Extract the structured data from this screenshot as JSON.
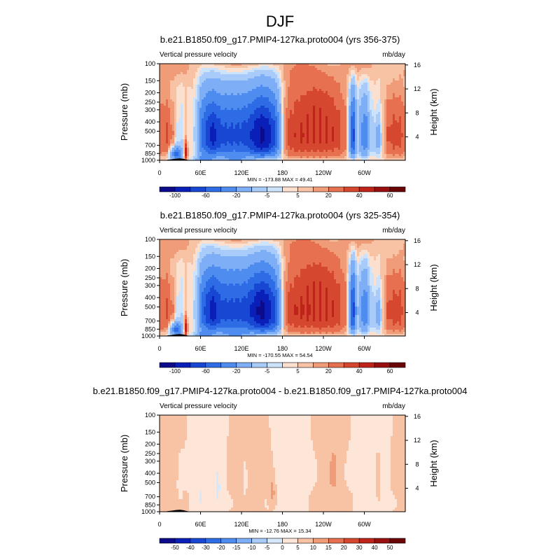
{
  "figure": {
    "title": "DJF"
  },
  "colors": {
    "abs_palette": [
      "#0b0b8c",
      "#0a1fb8",
      "#1747d3",
      "#2e6ce6",
      "#4f8cf0",
      "#7eaef6",
      "#a9cbf9",
      "#cde2fb",
      "#fbe0cf",
      "#f8c3a5",
      "#f19c78",
      "#e6704f",
      "#d6472f",
      "#bf241a",
      "#991010",
      "#6b0606"
    ],
    "diff_palette": [
      "#0b0b8c",
      "#0a1fb8",
      "#1747d3",
      "#2e6ce6",
      "#4f8cf0",
      "#7eaef6",
      "#a9cbf9",
      "#d8e8fc",
      "#fde6d8",
      "#f8c3a5",
      "#f19c78",
      "#e6704f",
      "#d6472f",
      "#bf241a",
      "#991010",
      "#6b0606"
    ],
    "topography": "#000000"
  },
  "chart_data": [
    {
      "type": "heatmap",
      "title": "b.e21.B1850.f09_g17.PMIP4-127ka.proto004 (yrs 356-375)",
      "variable_label": "Vertical pressure velocity",
      "units_label": "mb/day",
      "ylabel": "Pressure (mb)",
      "ylabel_right": "Height (km)",
      "x_ticks": [
        "0",
        "60E",
        "120E",
        "180",
        "120W",
        "60W"
      ],
      "x_tick_lons": [
        0,
        60,
        120,
        180,
        240,
        300
      ],
      "xlim": [
        0,
        360
      ],
      "y_ticks": [
        "100",
        "150",
        "200",
        "250",
        "300",
        "400",
        "500",
        "700",
        "850",
        "1000"
      ],
      "ylim": [
        1000,
        100
      ],
      "height_ticks": [
        "4",
        "8",
        "12",
        "16"
      ],
      "stats": "MIN = -173.88  MAX =  49.41",
      "colorbar_labels": [
        "-100",
        "-60",
        "-20",
        "-5",
        "5",
        "20",
        "40",
        "60"
      ],
      "colorbar_levels": [
        -120,
        -100,
        -80,
        -60,
        -40,
        -20,
        -10,
        -5,
        0,
        5,
        10,
        20,
        30,
        40,
        50,
        60,
        80
      ],
      "min": -173.88,
      "max": 49.41,
      "field_scale": 1.0,
      "palette": "abs"
    },
    {
      "type": "heatmap",
      "title": "b.e21.B1850.f09_g17.PMIP4-127ka.proto004 (yrs 325-354)",
      "variable_label": "Vertical pressure velocity",
      "units_label": "mb/day",
      "ylabel": "Pressure (mb)",
      "ylabel_right": "Height (km)",
      "x_ticks": [
        "0",
        "60E",
        "120E",
        "180",
        "120W",
        "60W"
      ],
      "x_tick_lons": [
        0,
        60,
        120,
        180,
        240,
        300
      ],
      "xlim": [
        0,
        360
      ],
      "y_ticks": [
        "100",
        "150",
        "200",
        "250",
        "300",
        "400",
        "500",
        "700",
        "850",
        "1000"
      ],
      "ylim": [
        1000,
        100
      ],
      "height_ticks": [
        "4",
        "8",
        "12",
        "16"
      ],
      "stats": "MIN = -170.55  MAX =  54.54",
      "colorbar_labels": [
        "-100",
        "-60",
        "-20",
        "-5",
        "5",
        "20",
        "40",
        "60"
      ],
      "colorbar_levels": [
        -120,
        -100,
        -80,
        -60,
        -40,
        -20,
        -10,
        -5,
        0,
        5,
        10,
        20,
        30,
        40,
        50,
        60,
        80
      ],
      "min": -170.55,
      "max": 54.54,
      "field_scale": 1.02,
      "palette": "abs"
    },
    {
      "type": "heatmap",
      "title": "b.e21.B1850.f09_g17.PMIP4-127ka.proto004 - b.e21.B1850.f09_g17.PMIP4-127ka.proto004",
      "variable_label": "Vertical pressure velocity",
      "units_label": "mb/day",
      "ylabel": "Pressure (mb)",
      "ylabel_right": "Height (km)",
      "x_ticks": [
        "0",
        "60E",
        "120E",
        "180",
        "120W",
        "60W"
      ],
      "x_tick_lons": [
        0,
        60,
        120,
        180,
        240,
        300
      ],
      "xlim": [
        0,
        360
      ],
      "y_ticks": [
        "100",
        "150",
        "200",
        "250",
        "300",
        "400",
        "500",
        "700",
        "850",
        "1000"
      ],
      "ylim": [
        1000,
        100
      ],
      "height_ticks": [
        "4",
        "8",
        "12",
        "16"
      ],
      "stats": "MIN = -12.76  MAX =  15.34",
      "colorbar_labels": [
        "-50",
        "-40",
        "-30",
        "-20",
        "-15",
        "-10",
        "-5",
        "0",
        "5",
        "10",
        "15",
        "20",
        "30",
        "40",
        "50"
      ],
      "colorbar_levels": [
        -60,
        -50,
        -40,
        -30,
        -20,
        -15,
        -10,
        -5,
        0,
        5,
        10,
        15,
        20,
        30,
        40,
        50,
        60
      ],
      "min": -12.76,
      "max": 15.34,
      "field_scale": 1.0,
      "palette": "diff"
    }
  ]
}
